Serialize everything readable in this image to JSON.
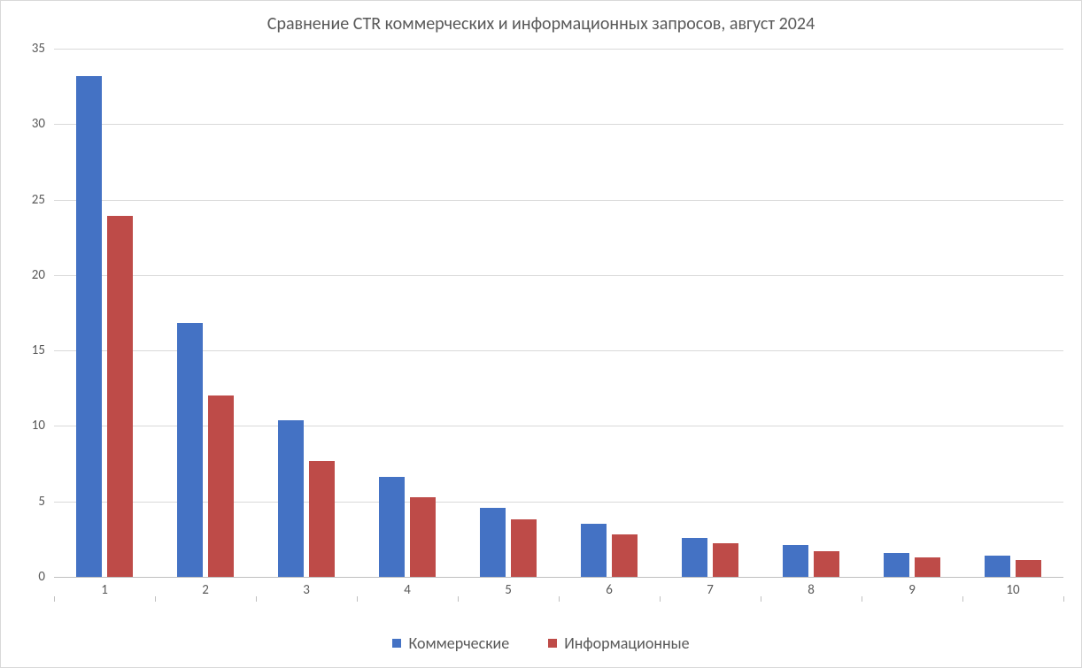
{
  "chart": {
    "type": "bar",
    "title": "Сравнение CTR коммерческих и информационных запросов, август 2024",
    "title_fontsize": 20,
    "title_color": "#595959",
    "background_color": "#ffffff",
    "border_color": "#d9d9d9",
    "grid_color": "#d9d9d9",
    "axis_line_color": "#bfbfbf",
    "tick_label_color": "#595959",
    "tick_label_fontsize": 15,
    "legend_fontsize": 18,
    "legend_position": "bottom-center",
    "categories": [
      "1",
      "2",
      "3",
      "4",
      "5",
      "6",
      "7",
      "8",
      "9",
      "10"
    ],
    "y": {
      "min": 0,
      "max": 35,
      "step": 5,
      "ticks": [
        "0",
        "5",
        "10",
        "15",
        "20",
        "25",
        "30",
        "35"
      ]
    },
    "series": [
      {
        "name": "Коммерческие",
        "color": "#4472c4",
        "values": [
          33.2,
          16.8,
          10.4,
          6.6,
          4.6,
          3.5,
          2.6,
          2.1,
          1.6,
          1.4
        ]
      },
      {
        "name": "Информационные",
        "color": "#be4b48",
        "values": [
          23.9,
          12.0,
          7.7,
          5.3,
          3.8,
          2.8,
          2.2,
          1.7,
          1.3,
          1.1
        ]
      }
    ],
    "bar_group_width": 0.56,
    "bar_gap": 0.06
  }
}
